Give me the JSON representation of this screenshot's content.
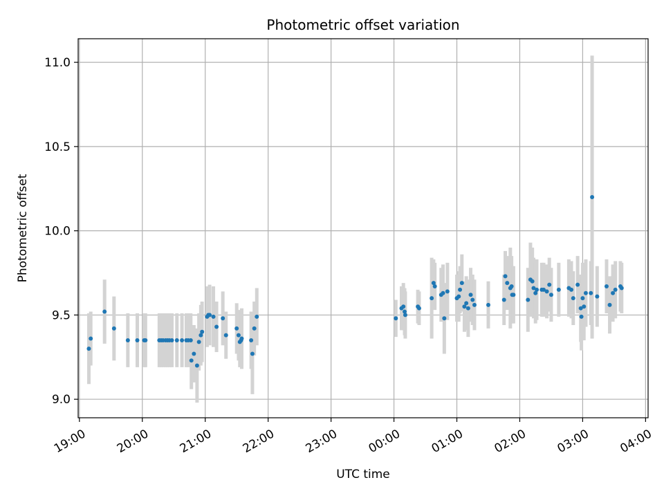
{
  "chart_data": {
    "type": "scatter",
    "title": "Photometric offset variation",
    "xlabel": "UTC time",
    "ylabel": "Photometric offset",
    "x_ticks": [
      "19:00",
      "20:00",
      "21:00",
      "22:00",
      "23:00",
      "00:00",
      "01:00",
      "02:00",
      "03:00",
      "04:00"
    ],
    "y_ticks": [
      "9.0",
      "9.5",
      "10.0",
      "10.5",
      "11.0"
    ],
    "xlim_hours": [
      18.98,
      28.04
    ],
    "ylim": [
      8.89,
      11.14
    ],
    "grid": true,
    "colors": {
      "marker": "#1f77b4",
      "errorbar": "#d3d3d3",
      "grid": "#b0b0b0"
    },
    "series": [
      {
        "points": [
          [
            19.15,
            9.3,
            0.21
          ],
          [
            19.18,
            9.36,
            0.16
          ],
          [
            19.4,
            9.52,
            0.19
          ],
          [
            19.55,
            9.42,
            0.19
          ],
          [
            19.77,
            9.35,
            0.16
          ],
          [
            19.92,
            9.35,
            0.16
          ],
          [
            20.03,
            9.35,
            0.16
          ],
          [
            20.05,
            9.35,
            0.16
          ],
          [
            20.27,
            9.35,
            0.16
          ],
          [
            20.3,
            9.35,
            0.16
          ],
          [
            20.33,
            9.35,
            0.16
          ],
          [
            20.37,
            9.35,
            0.16
          ],
          [
            20.4,
            9.35,
            0.16
          ],
          [
            20.43,
            9.35,
            0.16
          ],
          [
            20.47,
            9.35,
            0.16
          ],
          [
            20.55,
            9.35,
            0.16
          ],
          [
            20.63,
            9.35,
            0.16
          ],
          [
            20.7,
            9.35,
            0.16
          ],
          [
            20.73,
            9.35,
            0.16
          ],
          [
            20.77,
            9.35,
            0.16
          ],
          [
            20.78,
            9.23,
            0.17
          ],
          [
            20.82,
            9.27,
            0.17
          ],
          [
            20.87,
            9.2,
            0.22
          ],
          [
            20.9,
            9.34,
            0.17
          ],
          [
            20.93,
            9.38,
            0.18
          ],
          [
            20.95,
            9.4,
            0.18
          ],
          [
            21.03,
            9.49,
            0.18
          ],
          [
            21.05,
            9.5,
            0.17
          ],
          [
            21.07,
            9.5,
            0.18
          ],
          [
            21.13,
            9.49,
            0.18
          ],
          [
            21.18,
            9.43,
            0.15
          ],
          [
            21.28,
            9.48,
            0.16
          ],
          [
            21.33,
            9.38,
            0.14
          ],
          [
            21.5,
            9.42,
            0.15
          ],
          [
            21.53,
            9.38,
            0.15
          ],
          [
            21.55,
            9.34,
            0.15
          ],
          [
            21.57,
            9.35,
            0.15
          ],
          [
            21.58,
            9.36,
            0.18
          ],
          [
            21.73,
            9.35,
            0.17
          ],
          [
            21.75,
            9.27,
            0.24
          ],
          [
            21.78,
            9.42,
            0.16
          ],
          [
            21.82,
            9.49,
            0.17
          ],
          [
            24.03,
            9.48,
            0.11
          ],
          [
            24.12,
            9.54,
            0.13
          ],
          [
            24.15,
            9.55,
            0.14
          ],
          [
            24.17,
            9.52,
            0.14
          ],
          [
            24.18,
            9.5,
            0.14
          ],
          [
            24.38,
            9.55,
            0.1
          ],
          [
            24.4,
            9.54,
            0.1
          ],
          [
            24.6,
            9.6,
            0.24
          ],
          [
            24.63,
            9.69,
            0.14
          ],
          [
            24.65,
            9.67,
            0.14
          ],
          [
            24.75,
            9.62,
            0.16
          ],
          [
            24.78,
            9.63,
            0.17
          ],
          [
            24.8,
            9.48,
            0.21
          ],
          [
            24.85,
            9.64,
            0.17
          ],
          [
            25.0,
            9.6,
            0.14
          ],
          [
            25.03,
            9.61,
            0.15
          ],
          [
            25.05,
            9.65,
            0.14
          ],
          [
            25.08,
            9.69,
            0.17
          ],
          [
            25.12,
            9.55,
            0.15
          ],
          [
            25.15,
            9.57,
            0.16
          ],
          [
            25.18,
            9.54,
            0.17
          ],
          [
            25.22,
            9.62,
            0.16
          ],
          [
            25.25,
            9.59,
            0.15
          ],
          [
            25.28,
            9.56,
            0.15
          ],
          [
            25.5,
            9.56,
            0.14
          ],
          [
            25.75,
            9.59,
            0.15
          ],
          [
            25.77,
            9.73,
            0.15
          ],
          [
            25.8,
            9.69,
            0.16
          ],
          [
            25.85,
            9.66,
            0.24
          ],
          [
            25.87,
            9.67,
            0.18
          ],
          [
            25.88,
            9.62,
            0.17
          ],
          [
            25.9,
            9.62,
            0.17
          ],
          [
            26.13,
            9.59,
            0.19
          ],
          [
            26.17,
            9.71,
            0.22
          ],
          [
            26.2,
            9.7,
            0.2
          ],
          [
            26.22,
            9.66,
            0.18
          ],
          [
            26.25,
            9.63,
            0.18
          ],
          [
            26.27,
            9.65,
            0.18
          ],
          [
            26.35,
            9.65,
            0.16
          ],
          [
            26.38,
            9.65,
            0.16
          ],
          [
            26.43,
            9.64,
            0.16
          ],
          [
            26.47,
            9.68,
            0.16
          ],
          [
            26.5,
            9.62,
            0.16
          ],
          [
            26.62,
            9.65,
            0.16
          ],
          [
            26.78,
            9.66,
            0.17
          ],
          [
            26.82,
            9.65,
            0.17
          ],
          [
            26.85,
            9.6,
            0.16
          ],
          [
            26.92,
            9.68,
            0.17
          ],
          [
            26.97,
            9.54,
            0.2
          ],
          [
            26.98,
            9.49,
            0.2
          ],
          [
            27.0,
            9.6,
            0.21
          ],
          [
            27.02,
            9.55,
            0.2
          ],
          [
            27.05,
            9.63,
            0.2
          ],
          [
            27.13,
            9.63,
            0.19
          ],
          [
            27.15,
            10.2,
            0.84
          ],
          [
            27.23,
            9.61,
            0.18
          ],
          [
            27.38,
            9.67,
            0.16
          ],
          [
            27.43,
            9.56,
            0.17
          ],
          [
            27.48,
            9.63,
            0.17
          ],
          [
            27.52,
            9.65,
            0.17
          ],
          [
            27.6,
            9.67,
            0.15
          ],
          [
            27.62,
            9.66,
            0.15
          ]
        ]
      }
    ]
  }
}
